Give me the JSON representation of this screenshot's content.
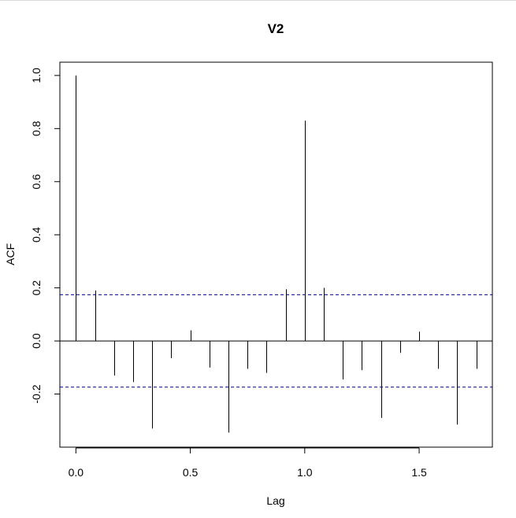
{
  "chart_data": {
    "type": "bar",
    "title": "V2",
    "xlabel": "Lag",
    "ylabel": "ACF",
    "xlim": [
      -0.07,
      1.82
    ],
    "ylim": [
      -0.4,
      1.05
    ],
    "x_ticks": [
      0.0,
      0.5,
      1.0,
      1.5
    ],
    "x_tick_labels": [
      "0.0",
      "0.5",
      "1.0",
      "1.5"
    ],
    "y_ticks": [
      -0.2,
      0.0,
      0.2,
      0.4,
      0.6,
      0.8,
      1.0
    ],
    "y_tick_labels": [
      "-0.2",
      "0.0",
      "0.2",
      "0.4",
      "0.6",
      "0.8",
      "1.0"
    ],
    "confidence_band": [
      0.174,
      -0.174
    ],
    "confidence_band_color": "#00008b",
    "zero_line": 0,
    "grid": false,
    "series": [
      {
        "x": [
          0.0,
          0.0833,
          0.1667,
          0.25,
          0.3333,
          0.4167,
          0.5,
          0.5833,
          0.6667,
          0.75,
          0.8333,
          0.9167,
          1.0,
          1.0833,
          1.1667,
          1.25,
          1.3333,
          1.4167,
          1.5,
          1.5833,
          1.6667,
          1.75
        ],
        "values": [
          1.0,
          0.19,
          -0.13,
          -0.155,
          -0.33,
          -0.065,
          0.04,
          -0.1,
          -0.345,
          -0.105,
          -0.12,
          0.195,
          0.83,
          0.2,
          -0.145,
          -0.11,
          -0.29,
          -0.045,
          0.035,
          -0.105,
          -0.315,
          -0.105
        ]
      }
    ]
  }
}
